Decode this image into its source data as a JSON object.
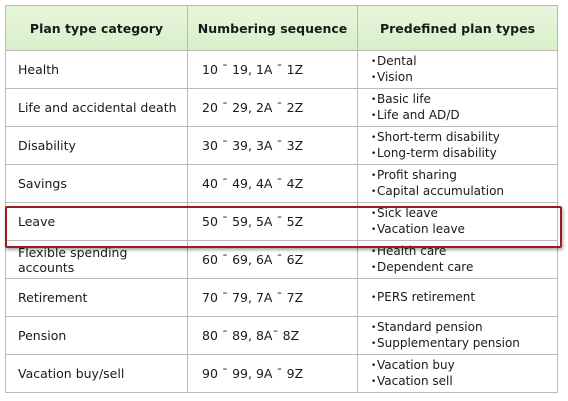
{
  "headers": [
    "Plan type category",
    "Numbering sequence",
    "Predefined plan types"
  ],
  "rows": [
    {
      "category": "Health",
      "sequence": "10 ˉ 19, 1A ˉ 1Z",
      "types": [
        "Dental",
        "Vision"
      ]
    },
    {
      "category": "Life and accidental death",
      "sequence": "20 ˉ 29, 2A ˉ 2Z",
      "types": [
        "Basic life",
        "Life and AD/D"
      ]
    },
    {
      "category": "Disability",
      "sequence": "30 ˉ 39, 3A ˉ 3Z",
      "types": [
        "Short-term disability",
        "Long-term disability"
      ]
    },
    {
      "category": "Savings",
      "sequence": "40 ˉ 49, 4A ˉ 4Z",
      "types": [
        "Profit sharing",
        "Capital accumulation"
      ]
    },
    {
      "category": "Leave",
      "sequence": "50 ˉ 59, 5A ˉ 5Z",
      "types": [
        "Sick leave",
        "Vacation leave"
      ]
    },
    {
      "category": "Flexible spending accounts",
      "sequence": "60 ˉ 69, 6A ˉ 6Z",
      "types": [
        "Health care",
        "Dependent care"
      ]
    },
    {
      "category": "Retirement",
      "sequence": "70 ˉ 79, 7A ˉ 7Z",
      "types": [
        "PERS retirement"
      ]
    },
    {
      "category": "Pension",
      "sequence": "80 ˉ 89, 8Aˉ 8Z",
      "types": [
        "Standard pension",
        "Supplementary pension"
      ]
    },
    {
      "category": "Vacation buy/sell",
      "sequence": "90 ˉ 99, 9A ˉ 9Z",
      "types": [
        "Vacation buy",
        "Vacation sell"
      ]
    }
  ],
  "colors": {
    "header_bg": "#dcf1cd",
    "border": "#b9b9b9",
    "highlight": "#9b1b1f"
  }
}
